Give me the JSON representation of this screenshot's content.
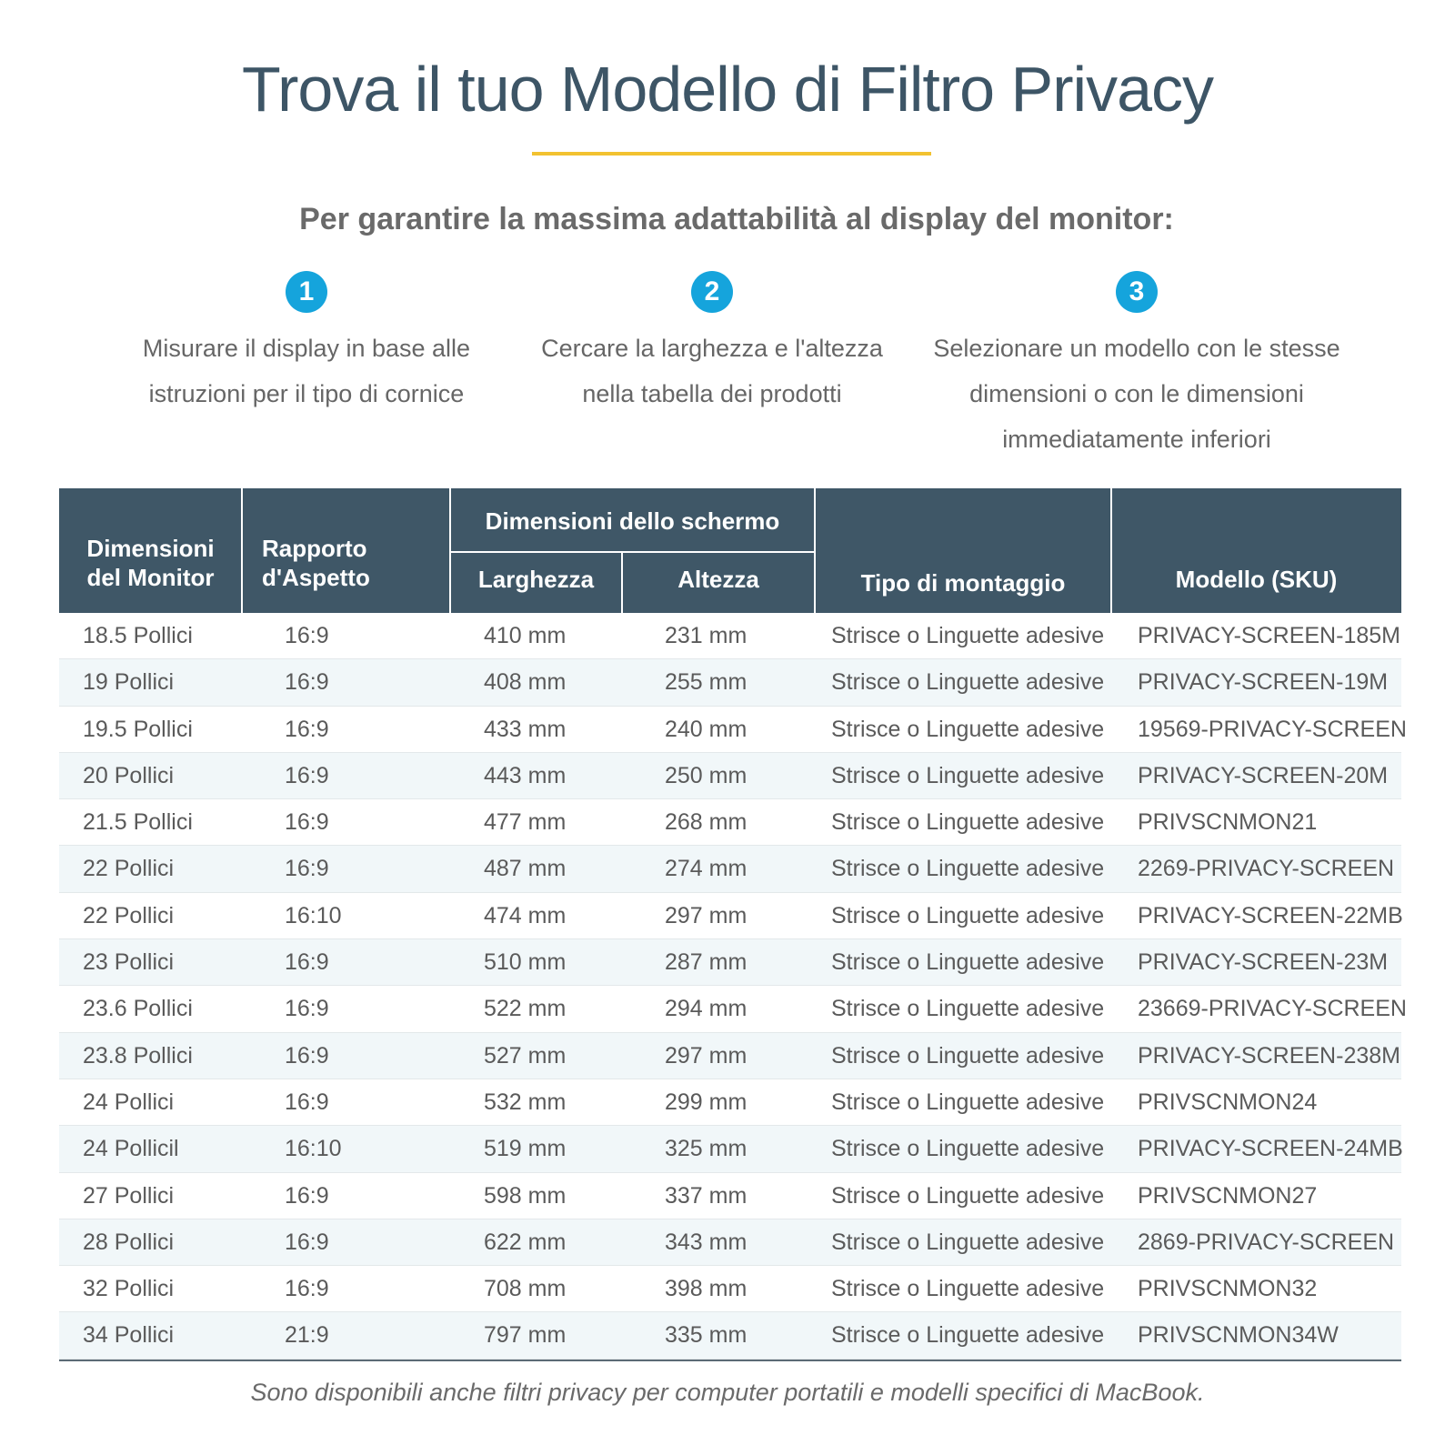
{
  "title": "Trova il tuo Modello di Filtro Privacy",
  "subtitle": "Per garantire la massima adattabilità al display del monitor:",
  "accent_color": "#f2c230",
  "step_color": "#15a4dc",
  "header_color": "#3f5767",
  "steps": [
    {
      "number": "1",
      "lines": [
        "Misurare il display in base alle",
        "istruzioni per il tipo di cornice"
      ]
    },
    {
      "number": "2",
      "lines": [
        "Cercare la larghezza e l'altezza",
        "nella tabella dei prodotti"
      ]
    },
    {
      "number": "3",
      "lines": [
        "Selezionare un modello con le stesse",
        "dimensioni o con le dimensioni",
        "immediatamente inferiori"
      ]
    }
  ],
  "table": {
    "headers": {
      "monitor": [
        "Dimensioni",
        "del Monitor"
      ],
      "ratio": [
        "Rapporto",
        "d'Aspetto"
      ],
      "screen_group": "Dimensioni dello schermo",
      "width": "Larghezza",
      "height": "Altezza",
      "mount": "Tipo di montaggio",
      "model": "Modello (SKU)"
    },
    "rows": [
      [
        "18.5 Pollici",
        "16:9",
        "410 mm",
        "231 mm",
        "Strisce o Linguette adesive",
        "PRIVACY-SCREEN-185M"
      ],
      [
        "19 Pollici",
        "16:9",
        "408 mm",
        "255 mm",
        "Strisce o Linguette adesive",
        "PRIVACY-SCREEN-19M"
      ],
      [
        "19.5 Pollici",
        "16:9",
        "433 mm",
        "240 mm",
        "Strisce o Linguette adesive",
        "19569-PRIVACY-SCREEN"
      ],
      [
        "20 Pollici",
        "16:9",
        "443 mm",
        "250 mm",
        "Strisce o Linguette adesive",
        "PRIVACY-SCREEN-20M"
      ],
      [
        "21.5 Pollici",
        "16:9",
        "477 mm",
        "268 mm",
        "Strisce o Linguette adesive",
        "PRIVSCNMON21"
      ],
      [
        "22 Pollici",
        "16:9",
        "487 mm",
        "274 mm",
        "Strisce o Linguette adesive",
        "2269-PRIVACY-SCREEN"
      ],
      [
        "22 Pollici",
        "16:10",
        "474 mm",
        "297 mm",
        "Strisce o Linguette adesive",
        "PRIVACY-SCREEN-22MB"
      ],
      [
        "23 Pollici",
        "16:9",
        "510 mm",
        "287 mm",
        "Strisce o Linguette adesive",
        "PRIVACY-SCREEN-23M"
      ],
      [
        "23.6 Pollici",
        "16:9",
        "522 mm",
        "294 mm",
        "Strisce o Linguette adesive",
        "23669-PRIVACY-SCREEN"
      ],
      [
        "23.8 Pollici",
        "16:9",
        "527 mm",
        "297 mm",
        "Strisce o Linguette adesive",
        "PRIVACY-SCREEN-238M"
      ],
      [
        "24 Pollici",
        "16:9",
        "532 mm",
        "299 mm",
        "Strisce o Linguette adesive",
        "PRIVSCNMON24"
      ],
      [
        "24 Pollicil",
        "16:10",
        "519 mm",
        "325 mm",
        "Strisce o Linguette adesive",
        "PRIVACY-SCREEN-24MB"
      ],
      [
        "27 Pollici",
        "16:9",
        "598 mm",
        "337 mm",
        "Strisce o Linguette adesive",
        "PRIVSCNMON27"
      ],
      [
        "28 Pollici",
        "16:9",
        "622 mm",
        "343 mm",
        "Strisce o Linguette adesive",
        "2869-PRIVACY-SCREEN"
      ],
      [
        "32 Pollici",
        "16:9",
        "708 mm",
        "398 mm",
        "Strisce o Linguette adesive",
        "PRIVSCNMON32"
      ],
      [
        "34 Pollici",
        "21:9",
        "797 mm",
        "335 mm",
        "Strisce o Linguette adesive",
        "PRIVSCNMON34W"
      ]
    ]
  },
  "footnote": "Sono disponibili anche filtri privacy per computer portatili e modelli specifici di MacBook."
}
